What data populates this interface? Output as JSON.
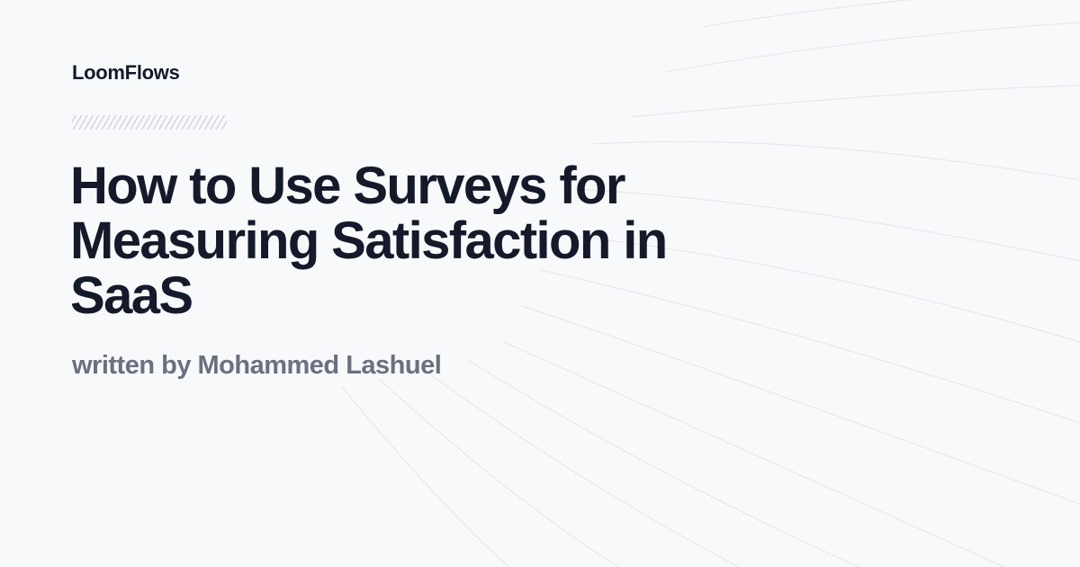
{
  "brand": {
    "name": "LoomFlows"
  },
  "article": {
    "title": "How to Use Surveys for Measuring Satisfaction in SaaS",
    "byline": "written by Mohammed Lashuel"
  },
  "colors": {
    "background": "#f8f9fb",
    "title_text": "#141a2a",
    "byline_text": "#6b7080",
    "divider": "#d3d6dd",
    "decor_lines": "#e2e5ea"
  },
  "icons": {
    "divider": "diagonal-hatch-pattern",
    "background": "curved-wave-lines"
  }
}
